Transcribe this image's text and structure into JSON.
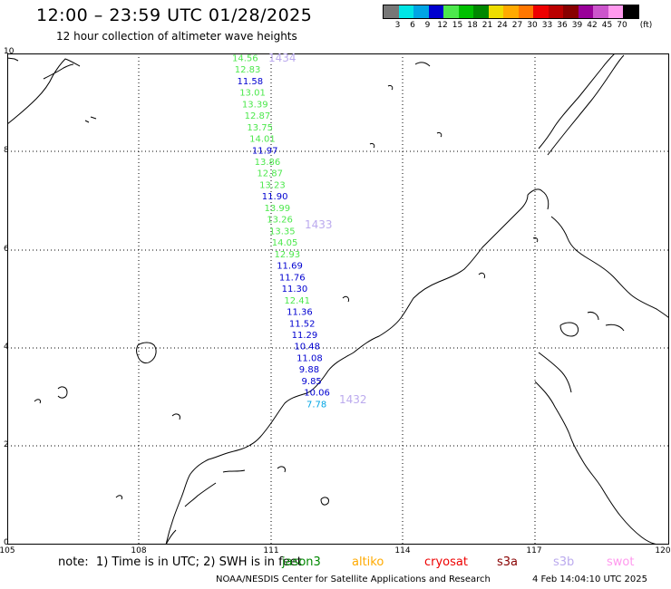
{
  "header": {
    "title": "12:00 – 23:59 UTC 01/28/2025",
    "subtitle": "12 hour collection of altimeter wave heights"
  },
  "legend": {
    "unit": "(ft)",
    "ticks": [
      "3",
      "6",
      "9",
      "12",
      "15",
      "18",
      "21",
      "24",
      "27",
      "30",
      "33",
      "36",
      "39",
      "42",
      "45",
      "70"
    ],
    "colors": [
      "#777777",
      "#00e5e5",
      "#00a5e5",
      "#0000d0",
      "#4de84d",
      "#00c000",
      "#008800",
      "#eedd00",
      "#ffaa00",
      "#ff7700",
      "#ee0000",
      "#bb0000",
      "#880000",
      "#990099",
      "#cc55cc",
      "#ff99ee",
      "#000000"
    ]
  },
  "axes": {
    "lat_labels": [
      "10",
      "8",
      "6",
      "4",
      "2",
      "0"
    ],
    "lon_labels": [
      "105",
      "108",
      "111",
      "114",
      "117",
      "120"
    ]
  },
  "track_labels": [
    "1434",
    "1433",
    "1432"
  ],
  "wave_heights": [
    {
      "v": "14.56",
      "c": "#4de84d"
    },
    {
      "v": "12.83",
      "c": "#4de84d"
    },
    {
      "v": "11.58",
      "c": "#0000d0"
    },
    {
      "v": "13.01",
      "c": "#4de84d"
    },
    {
      "v": "13.39",
      "c": "#4de84d"
    },
    {
      "v": "12.87",
      "c": "#4de84d"
    },
    {
      "v": "13.75",
      "c": "#4de84d"
    },
    {
      "v": "14.01",
      "c": "#4de84d"
    },
    {
      "v": "11.97",
      "c": "#0000d0"
    },
    {
      "v": "13.86",
      "c": "#4de84d"
    },
    {
      "v": "12.87",
      "c": "#4de84d"
    },
    {
      "v": "13.23",
      "c": "#4de84d"
    },
    {
      "v": "11.90",
      "c": "#0000d0"
    },
    {
      "v": "13.99",
      "c": "#4de84d"
    },
    {
      "v": "13.26",
      "c": "#4de84d"
    },
    {
      "v": "13.35",
      "c": "#4de84d"
    },
    {
      "v": "14.05",
      "c": "#4de84d"
    },
    {
      "v": "12.93",
      "c": "#4de84d"
    },
    {
      "v": "11.69",
      "c": "#0000d0"
    },
    {
      "v": "11.76",
      "c": "#0000d0"
    },
    {
      "v": "11.30",
      "c": "#0000d0"
    },
    {
      "v": "12.41",
      "c": "#4de84d"
    },
    {
      "v": "11.36",
      "c": "#0000d0"
    },
    {
      "v": "11.52",
      "c": "#0000d0"
    },
    {
      "v": "11.29",
      "c": "#0000d0"
    },
    {
      "v": "10.48",
      "c": "#0000d0"
    },
    {
      "v": "11.08",
      "c": "#0000d0"
    },
    {
      "v": "9.88",
      "c": "#0000d0"
    },
    {
      "v": "9.85",
      "c": "#0000d0"
    },
    {
      "v": "10.06",
      "c": "#0000d0"
    },
    {
      "v": "7.78",
      "c": "#00a5e5"
    }
  ],
  "track_label_color": "#bbaaee",
  "footer": {
    "note": "note:  1) Time is in UTC; 2) SWH is in feet",
    "missions": [
      {
        "name": "jason3",
        "color": "#008800"
      },
      {
        "name": "altiko",
        "color": "#ffaa00"
      },
      {
        "name": "cryosat",
        "color": "#ee0000"
      },
      {
        "name": "s3a",
        "color": "#880000"
      },
      {
        "name": "s3b",
        "color": "#bbaaee"
      },
      {
        "name": "swot",
        "color": "#ff99ee"
      }
    ],
    "credit": "NOAA/NESDIS Center for Satellite Applications and Research",
    "timestamp": "4 Feb 14:04:10 UTC 2025"
  }
}
